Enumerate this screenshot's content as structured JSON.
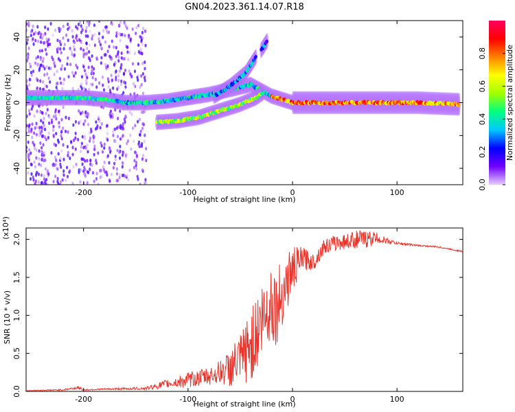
{
  "title": "GN04.2023.361.14.07.R18",
  "chart_data": [
    {
      "type": "heatmap",
      "panel": "top",
      "xlabel": "Height of straight line (km)",
      "ylabel": "Frequency (Hz)",
      "xlim": [
        -255,
        163
      ],
      "ylim": [
        -50,
        50
      ],
      "x_ticks": [
        -200,
        -100,
        0,
        100
      ],
      "y_ticks": [
        -40,
        -20,
        0,
        20,
        40
      ],
      "colorbar": {
        "label": "Normalized spectral amplitude",
        "range": [
          0,
          1
        ],
        "ticks": [
          0.0,
          0.2,
          0.4,
          0.6,
          0.8
        ],
        "colormap": [
          "#e8ccff",
          "#7000ff",
          "#0000ff",
          "#00c8ff",
          "#00ff80",
          "#a0ff00",
          "#ffff00",
          "#ff8000",
          "#ff0000",
          "#ff0060"
        ]
      },
      "tracks": [
        {
          "x": [
            -255,
            -230,
            -200,
            -180,
            -160,
            -140,
            -120,
            -100,
            -80,
            -60,
            -40,
            -20,
            0,
            40,
            80,
            120,
            160
          ],
          "y": [
            3,
            3,
            3,
            2,
            0,
            0,
            1,
            3,
            5,
            8,
            11,
            4,
            0,
            0,
            0,
            0,
            -1
          ],
          "amplitude": 0.45
        },
        {
          "x": [
            -130,
            -110,
            -90,
            -70,
            -50,
            -35,
            -28
          ],
          "y": [
            -12,
            -11,
            -9,
            -5,
            -1,
            3,
            6
          ],
          "amplitude": 0.55
        },
        {
          "x": [
            -75,
            -60,
            -45,
            -35
          ],
          "y": [
            4,
            10,
            18,
            28
          ],
          "amplitude": 0.3
        },
        {
          "x": [
            -30,
            -24
          ],
          "y": [
            32,
            38
          ],
          "amplitude": 0.25
        }
      ]
    },
    {
      "type": "line",
      "panel": "bottom",
      "xlabel": "Height of straight line (km)",
      "ylabel": "SNR (10 * v/v)",
      "multiplier": "(x10⁴)",
      "xlim": [
        -255,
        163
      ],
      "ylim": [
        0,
        2.15
      ],
      "x_ticks": [
        -200,
        -100,
        0,
        100
      ],
      "y_ticks": [
        0.0,
        0.5,
        1.0,
        1.5,
        2.0
      ],
      "series": [
        {
          "color": "#e8332a",
          "x": [
            -255,
            -220,
            -205,
            -200,
            -180,
            -140,
            -120,
            -110,
            -100,
            -80,
            -70,
            -60,
            -50,
            -40,
            -30,
            -20,
            -15,
            -10,
            -5,
            0,
            10,
            20,
            30,
            40,
            50,
            60,
            70,
            80,
            90,
            100,
            120,
            140,
            163
          ],
          "y": [
            0.01,
            0.02,
            0.05,
            0.02,
            0.03,
            0.04,
            0.1,
            0.12,
            0.15,
            0.2,
            0.25,
            0.3,
            0.4,
            0.6,
            0.9,
            1.2,
            1.1,
            1.3,
            1.45,
            1.6,
            1.75,
            1.7,
            1.9,
            1.95,
            1.97,
            2.0,
            2.0,
            2.02,
            1.98,
            1.95,
            1.92,
            1.9,
            1.84
          ],
          "noise": [
            0.005,
            0.01,
            0.02,
            0.01,
            0.01,
            0.02,
            0.06,
            0.08,
            0.1,
            0.12,
            0.15,
            0.25,
            0.35,
            0.5,
            0.55,
            0.55,
            0.5,
            0.45,
            0.4,
            0.3,
            0.15,
            0.12,
            0.1,
            0.1,
            0.1,
            0.12,
            0.12,
            0.08,
            0.04,
            0.02,
            0.01,
            0.01,
            0.01
          ]
        }
      ]
    }
  ]
}
